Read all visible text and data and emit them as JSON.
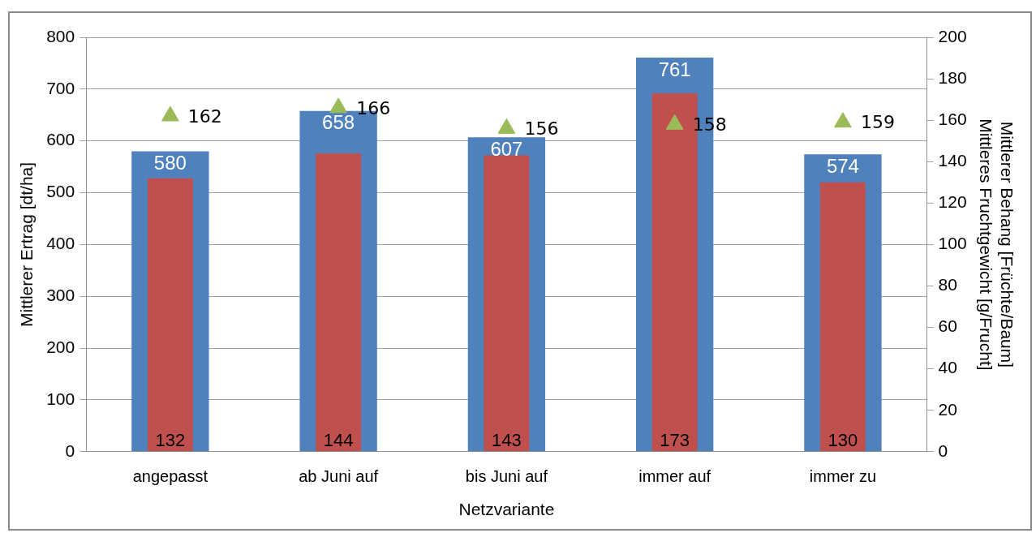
{
  "chart_data": {
    "type": "bar",
    "xlabel": "Netzvariante",
    "ylabel": "Mittlerer Ertrag [dt/ha]",
    "y2label": "Mittlerer Behang [Früchte/Baum]\nMittleres Fruchtgewicht [g/Frucht]",
    "categories": [
      "angepasst",
      "ab Juni auf",
      "bis Juni auf",
      "immer auf",
      "immer zu"
    ],
    "series": [
      {
        "color": "#4f81bd",
        "values": [
          580,
          658,
          607,
          761,
          574
        ]
      },
      {
        "color": "#c0504d",
        "axis": "y2",
        "values": [
          132,
          144,
          143,
          173,
          130
        ]
      },
      {
        "type": "scatter",
        "color": "#9bbb59",
        "axis": "y2",
        "values": [
          162,
          166,
          156,
          158,
          159
        ]
      }
    ],
    "marker": "triangle",
    "ylim": [
      0,
      800
    ],
    "yticks": [
      0,
      100,
      200,
      300,
      400,
      500,
      600,
      700,
      800
    ],
    "y2lim": [
      0,
      200
    ],
    "y2ticks": [
      0,
      20,
      40,
      60,
      80,
      100,
      120,
      140,
      160,
      180,
      200
    ],
    "grid": "y",
    "legend": false,
    "data_labels": true
  }
}
